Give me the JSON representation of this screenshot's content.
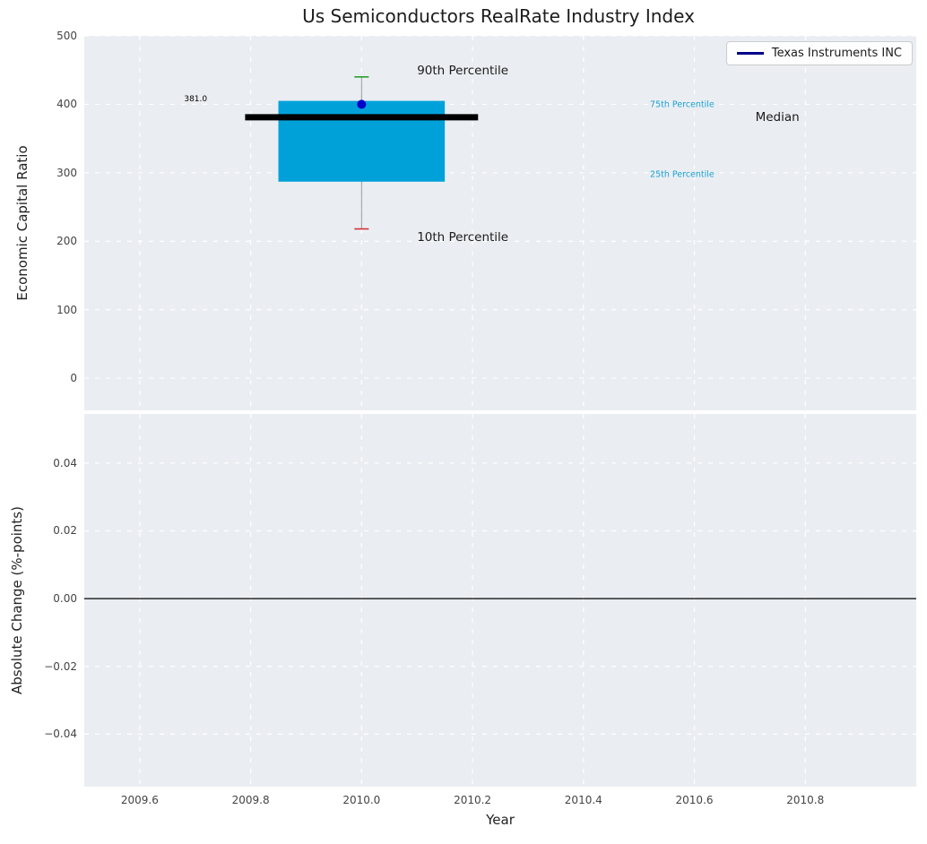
{
  "figure": {
    "bg": "#ffffff",
    "axes_bg": "#eaeef2",
    "grid_color": "#ffffff",
    "tick_color": "#444444",
    "title_color": "#1c1c1c"
  },
  "chart_data": {
    "type": "boxplot",
    "title": "Us Semiconductors RealRate Industry Index",
    "xlabel": "Year",
    "legend": {
      "label": "Texas Instruments INC",
      "line_color": "#00008b",
      "position": "upper right"
    },
    "top": {
      "ylabel": "Economic Capital Ratio",
      "xlim": [
        2009.5,
        2011.0
      ],
      "ylim": [
        -47,
        500
      ],
      "xticks": [
        2009.6,
        2009.8,
        2010.0,
        2010.2,
        2010.4,
        2010.6,
        2010.8
      ],
      "yticks": [
        0,
        100,
        200,
        300,
        400,
        500
      ],
      "ytick_labels": [
        "0",
        "100",
        "200",
        "300",
        "400",
        "500"
      ],
      "box": {
        "x": 2010.0,
        "box_halfwidth": 0.15,
        "cap_halfwidth": 0.013,
        "q1": 287,
        "median": 381.0,
        "q3": 405,
        "p10": 218,
        "p90": 440,
        "median_x1": 2009.79,
        "median_x2": 2010.21,
        "box_color": "#00a1d9",
        "median_color": "#000000",
        "whisker_color": "#999999",
        "p90_cap_color": "#2ca02c",
        "p10_cap_color": "#d62728"
      },
      "company_point": {
        "x": 2010.0,
        "y": 400,
        "color": "#0000cd",
        "radius": 5
      },
      "annotations": [
        {
          "text": "381.0",
          "x": 2009.68,
          "y": 407,
          "size": 9,
          "color": "#000000"
        },
        {
          "text": "90th Percentile",
          "x": 2010.1,
          "y": 449,
          "size": 13.5,
          "color": "#1a1a1a"
        },
        {
          "text": "10th Percentile",
          "x": 2010.1,
          "y": 206,
          "size": 13.5,
          "color": "#1a1a1a"
        },
        {
          "text": "75th Percentile",
          "x": 2010.52,
          "y": 399,
          "size": 9.5,
          "color": "#19a0d4"
        },
        {
          "text": "25th Percentile",
          "x": 2010.52,
          "y": 297,
          "size": 9.5,
          "color": "#19a0d4"
        },
        {
          "text": "Median",
          "x": 2010.71,
          "y": 381,
          "size": 13.5,
          "color": "#1a1a1a"
        }
      ]
    },
    "bottom": {
      "ylabel": "Absolute Change (%-points)",
      "xlim": [
        2009.5,
        2011.0
      ],
      "ylim": [
        -0.0555,
        0.0545
      ],
      "xticks": [
        2009.6,
        2009.8,
        2010.0,
        2010.2,
        2010.4,
        2010.6,
        2010.8
      ],
      "xtick_labels": [
        "2009.6",
        "2009.8",
        "2010.0",
        "2010.2",
        "2010.4",
        "2010.6",
        "2010.8"
      ],
      "yticks": [
        0.04,
        0.02,
        0.0,
        -0.02,
        -0.04
      ],
      "ytick_labels": [
        "0.04",
        "0.02",
        "0.00",
        "−0.02",
        "−0.04"
      ],
      "zero_line": {
        "y": 0.0,
        "color": "#000000"
      }
    }
  }
}
